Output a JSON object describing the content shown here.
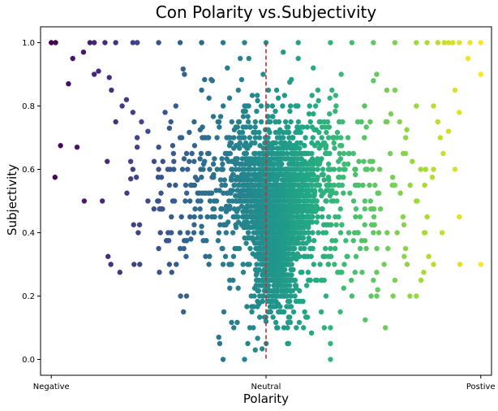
{
  "chart_data": {
    "type": "scatter",
    "title": "Con Polarity vs.Subjectivity",
    "xlabel": "Polarity",
    "ylabel": "Subjectivity",
    "xlim": [
      -1.05,
      1.05
    ],
    "ylim": [
      -0.05,
      1.05
    ],
    "x_ticks": [
      {
        "value": -1,
        "label": "Negative"
      },
      {
        "value": 0,
        "label": "Neutral"
      },
      {
        "value": 1,
        "label": "Postive"
      }
    ],
    "y_ticks": [
      {
        "value": 0.0,
        "label": "0.0"
      },
      {
        "value": 0.2,
        "label": "0.2"
      },
      {
        "value": 0.4,
        "label": "0.4"
      },
      {
        "value": 0.6,
        "label": "0.6"
      },
      {
        "value": 0.8,
        "label": "0.8"
      },
      {
        "value": 1.0,
        "label": "1.0"
      }
    ],
    "grid": false,
    "colormap": "viridis",
    "color_by": "x",
    "reference_line": {
      "axis": "x",
      "value": 0,
      "style": "dashed",
      "color": "#d62728"
    },
    "points": [
      [
        -1.0,
        1.0
      ],
      [
        -0.98,
        1.0
      ],
      [
        -0.82,
        1.0
      ],
      [
        -0.8,
        1.0
      ],
      [
        -0.75,
        1.0
      ],
      [
        -0.7,
        1.0
      ],
      [
        -0.62,
        1.0
      ],
      [
        -0.6,
        1.0
      ],
      [
        -0.5,
        1.0
      ],
      [
        -0.4,
        1.0
      ],
      [
        -0.3,
        1.0
      ],
      [
        -0.2,
        1.0
      ],
      [
        -0.1,
        1.0
      ],
      [
        0.0,
        1.0
      ],
      [
        0.15,
        1.0
      ],
      [
        0.3,
        1.0
      ],
      [
        0.4,
        1.0
      ],
      [
        0.5,
        1.0
      ],
      [
        0.6,
        1.0
      ],
      [
        0.7,
        1.0
      ],
      [
        0.75,
        1.0
      ],
      [
        0.8,
        1.0
      ],
      [
        0.83,
        1.0
      ],
      [
        0.85,
        1.0
      ],
      [
        0.87,
        1.0
      ],
      [
        0.9,
        1.0
      ],
      [
        0.95,
        1.0
      ],
      [
        1.0,
        1.0
      ],
      [
        -0.9,
        0.95
      ],
      [
        -0.85,
        0.97
      ],
      [
        -0.8,
        0.9
      ],
      [
        -0.78,
        0.91
      ],
      [
        -0.73,
        0.89
      ],
      [
        -0.72,
        0.85
      ],
      [
        -0.67,
        0.8
      ],
      [
        -0.65,
        0.82
      ],
      [
        -0.7,
        0.75
      ],
      [
        -0.62,
        0.78
      ],
      [
        -0.6,
        0.7
      ],
      [
        -0.58,
        0.75
      ],
      [
        -0.55,
        0.72
      ],
      [
        -0.6,
        0.67
      ],
      [
        -0.5,
        0.67
      ],
      [
        -0.47,
        0.78
      ],
      [
        -0.45,
        0.73
      ],
      [
        -0.42,
        0.8
      ],
      [
        -0.4,
        0.7
      ],
      [
        -0.37,
        0.65
      ],
      [
        -0.92,
        0.87
      ],
      [
        -0.88,
        0.67
      ],
      [
        -0.62,
        0.6
      ],
      [
        -0.63,
        0.57
      ],
      [
        -0.55,
        0.5
      ],
      [
        -0.5,
        0.5
      ],
      [
        -0.45,
        0.55
      ],
      [
        -0.5,
        0.6
      ],
      [
        -0.38,
        0.9
      ],
      [
        -0.3,
        0.85
      ],
      [
        -0.25,
        0.88
      ],
      [
        -0.18,
        0.92
      ],
      [
        -0.12,
        0.95
      ],
      [
        -0.08,
        0.95
      ],
      [
        0.08,
        0.97
      ],
      [
        0.15,
        0.95
      ],
      [
        0.22,
        0.92
      ],
      [
        0.35,
        0.9
      ],
      [
        0.5,
        0.88
      ],
      [
        0.6,
        0.85
      ],
      [
        0.7,
        0.8
      ],
      [
        0.78,
        0.8
      ],
      [
        0.8,
        0.75
      ],
      [
        0.85,
        0.72
      ],
      [
        0.9,
        0.78
      ],
      [
        0.88,
        0.85
      ],
      [
        0.94,
        0.95
      ],
      [
        0.65,
        0.65
      ],
      [
        0.72,
        0.6
      ],
      [
        0.78,
        0.6
      ],
      [
        0.88,
        0.6
      ],
      [
        0.6,
        0.55
      ],
      [
        0.7,
        0.5
      ],
      [
        0.75,
        0.45
      ],
      [
        0.82,
        0.4
      ],
      [
        0.74,
        0.4
      ],
      [
        0.65,
        0.35
      ],
      [
        0.55,
        0.3
      ],
      [
        0.52,
        0.22
      ],
      [
        0.4,
        0.2
      ],
      [
        0.5,
        0.25
      ],
      [
        0.7,
        0.2
      ],
      [
        0.67,
        0.2
      ],
      [
        0.6,
        0.25
      ],
      [
        1.0,
        0.3
      ],
      [
        1.0,
        0.9
      ],
      [
        0.9,
        0.45
      ],
      [
        0.5,
        0.4
      ],
      [
        0.3,
        0.35
      ],
      [
        -0.2,
        0.3
      ],
      [
        -0.4,
        0.35
      ],
      [
        -0.45,
        0.3
      ],
      [
        -0.5,
        0.35
      ],
      [
        -0.35,
        0.38
      ],
      [
        -0.3,
        0.42
      ],
      [
        -0.6,
        1.0
      ],
      [
        -0.3,
        1.0
      ],
      [
        0.1,
        0.1
      ],
      [
        0.3,
        0.1
      ],
      [
        0.3,
        0.05
      ],
      [
        0.3,
        0.0
      ],
      [
        -0.2,
        0.0
      ],
      [
        -0.1,
        0.0
      ],
      [
        -0.05,
        0.03
      ],
      [
        0.1,
        0.05
      ],
      [
        0.05,
        0.1
      ],
      [
        -0.15,
        0.1
      ],
      [
        -0.22,
        0.07
      ],
      [
        0.18,
        0.15
      ],
      [
        0.0,
        0.12
      ]
    ]
  }
}
